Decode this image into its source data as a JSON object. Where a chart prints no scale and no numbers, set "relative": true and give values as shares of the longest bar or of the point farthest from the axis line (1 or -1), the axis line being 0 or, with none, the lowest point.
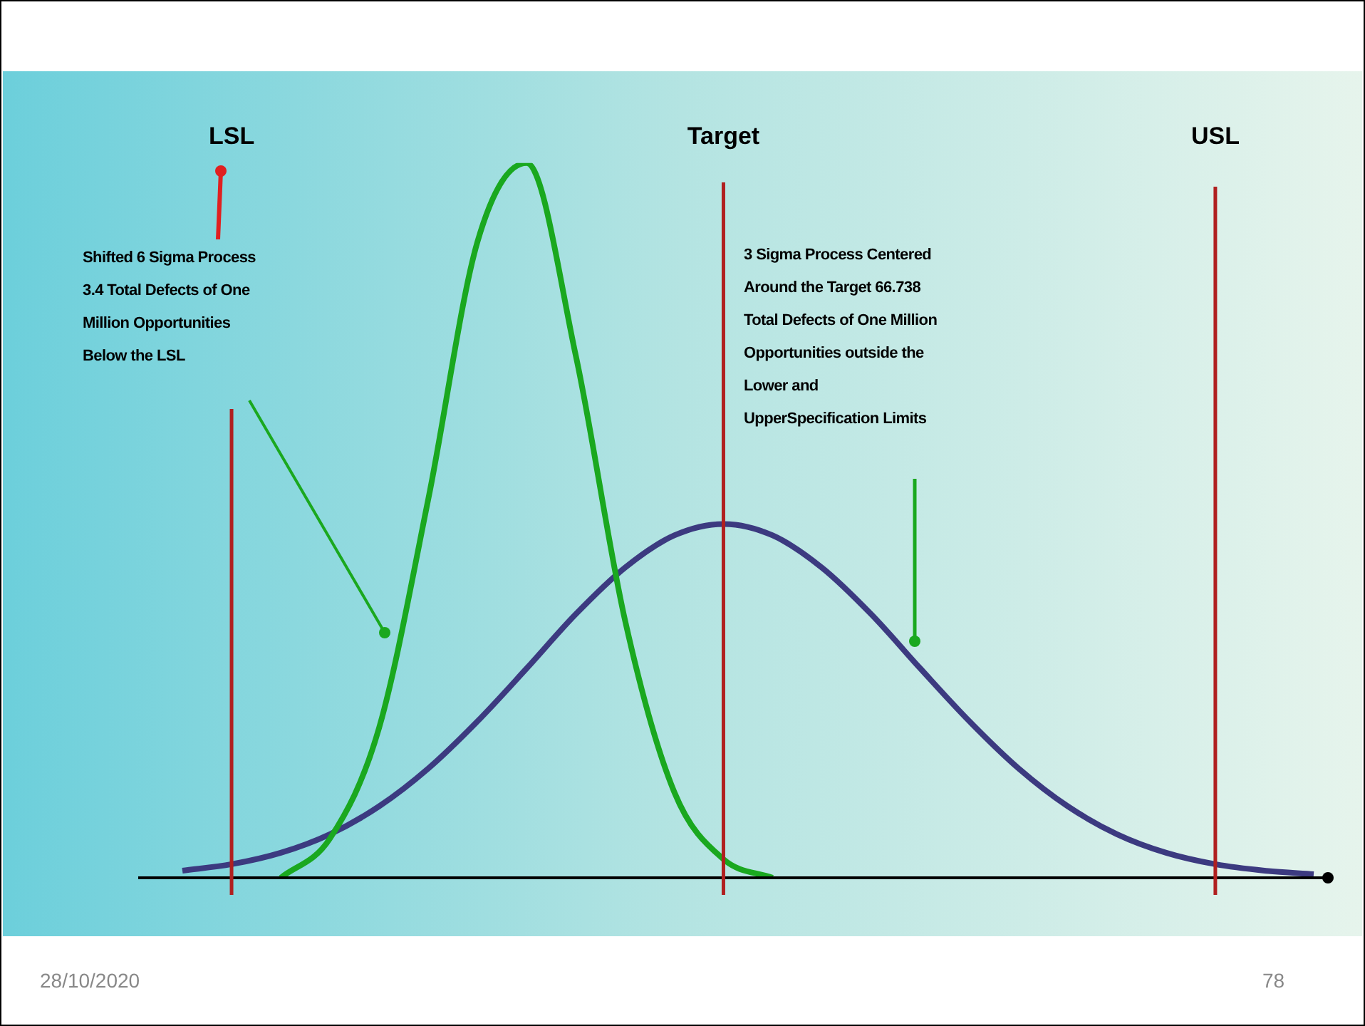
{
  "chart_data": {
    "type": "line",
    "relative": true,
    "tick_labels": "x",
    "grid": false,
    "legend": false,
    "marker": "none",
    "line_style": "solid",
    "categories": [
      null,
      "LSL",
      null,
      null,
      null,
      null,
      null,
      null,
      null,
      null,
      null,
      "Target",
      null,
      null,
      null,
      null,
      null,
      null,
      null,
      null,
      null,
      "USL",
      null,
      null
    ],
    "series": [
      {
        "color": "#1aa81f",
        "values": [
          null,
          null,
          0,
          0.055,
          0.21,
          0.53,
          0.89,
          1,
          0.73,
          0.36,
          0.12,
          0.026,
          0,
          null,
          null,
          null,
          null,
          null,
          null,
          null,
          null,
          null,
          null,
          null
        ]
      },
      {
        "color": "#3c3a80",
        "values": [
          0.01,
          0.019,
          0.035,
          0.061,
          0.1,
          0.153,
          0.219,
          0.293,
          0.369,
          0.434,
          0.479,
          0.495,
          0.479,
          0.434,
          0.369,
          0.293,
          0.219,
          0.153,
          0.1,
          0.061,
          0.035,
          0.019,
          0.01,
          0.005
        ]
      }
    ],
    "ref_lines": [
      {
        "axis": "x",
        "value": "LSL",
        "color": "#b02020"
      },
      {
        "axis": "x",
        "value": "Target",
        "color": "#b02020"
      },
      {
        "axis": "x",
        "value": "USL",
        "color": "#b02020"
      }
    ],
    "annotations": [
      "Shifted 6 Sigma Process 3.4 Total Defects of One Million Opportunities Below the LSL",
      "3 Sigma Process Centered Around the Target 66.738 Total Defects of One Million Opportunities outside the Lower and UpperSpecification Limits",
      "28/10/2020",
      "78"
    ]
  }
}
